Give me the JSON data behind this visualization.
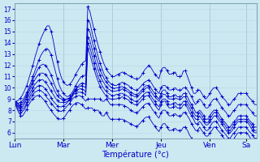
{
  "xlabel": "Température (°c)",
  "ylim": [
    5.5,
    17.5
  ],
  "yticks": [
    6,
    7,
    8,
    9,
    10,
    11,
    12,
    13,
    14,
    15,
    16,
    17
  ],
  "day_labels": [
    "Lun",
    "Mar",
    "Mer",
    "Jeu",
    "Ven",
    "Sa"
  ],
  "background_color": "#cce8f0",
  "grid_color_minor": "#b8d8e8",
  "grid_color_major": "#9fbfcf",
  "line_color": "#0000cc",
  "marker": "+",
  "n_days": 6,
  "hours_per_day": 24,
  "series": [
    [
      8.8,
      8.8,
      8.9,
      9.1,
      9.4,
      9.8,
      10.2,
      10.8,
      11.4,
      12.0,
      12.7,
      13.3,
      13.9,
      14.4,
      14.8,
      15.2,
      15.5,
      15.5,
      15.0,
      14.2,
      13.2,
      12.3,
      11.5,
      10.9,
      10.5,
      10.3,
      10.2,
      10.3,
      10.5,
      10.8,
      11.2,
      11.5,
      11.8,
      12.1,
      12.3,
      12.4,
      17.2,
      16.8,
      16.0,
      15.2,
      14.5,
      13.8,
      13.2,
      12.6,
      12.1,
      11.7,
      11.4,
      11.2,
      11.0,
      11.0,
      11.1,
      11.2,
      11.3,
      11.4,
      11.3,
      11.2,
      11.1,
      11.0,
      10.9,
      10.8,
      10.8,
      10.8,
      11.0,
      11.3,
      11.6,
      11.8,
      12.0,
      11.8,
      11.5,
      11.2,
      11.0,
      10.8,
      11.5,
      11.8,
      11.8,
      11.5,
      11.2,
      11.2,
      11.3,
      11.4,
      11.0,
      11.0,
      11.0,
      11.5,
      11.5,
      11.0,
      10.5,
      10.0,
      9.5,
      9.5,
      9.8,
      9.8,
      9.5,
      9.2,
      9.0,
      9.2,
      9.5,
      9.8,
      10.0,
      10.0,
      9.8,
      9.5,
      9.2,
      9.0,
      8.8,
      8.5,
      8.5,
      8.8,
      9.0,
      9.2,
      9.5,
      9.5,
      9.5,
      9.5,
      9.5,
      9.2,
      9.0,
      8.8,
      8.5,
      8.5
    ],
    [
      8.8,
      8.7,
      8.6,
      8.7,
      8.9,
      9.2,
      9.6,
      10.0,
      10.5,
      11.0,
      11.5,
      12.0,
      12.5,
      12.9,
      13.2,
      13.4,
      13.5,
      13.3,
      12.9,
      12.2,
      11.5,
      10.8,
      10.2,
      9.8,
      9.5,
      9.3,
      9.2,
      9.3,
      9.5,
      9.8,
      10.2,
      10.5,
      10.8,
      11.0,
      11.1,
      11.1,
      16.0,
      15.8,
      15.0,
      14.2,
      13.5,
      12.8,
      12.2,
      11.7,
      11.2,
      10.9,
      10.6,
      10.4,
      10.3,
      10.2,
      10.2,
      10.3,
      10.4,
      10.5,
      10.4,
      10.3,
      10.2,
      10.0,
      9.9,
      9.8,
      9.8,
      9.9,
      10.1,
      10.3,
      10.5,
      10.6,
      10.7,
      10.5,
      10.2,
      9.9,
      9.7,
      9.5,
      10.0,
      10.2,
      10.2,
      10.0,
      9.8,
      9.8,
      9.9,
      10.0,
      9.8,
      9.8,
      9.8,
      10.0,
      10.0,
      9.8,
      9.5,
      9.2,
      8.8,
      8.5,
      8.8,
      9.0,
      8.8,
      8.5,
      8.2,
      8.2,
      8.5,
      8.8,
      9.0,
      9.0,
      8.8,
      8.5,
      8.2,
      8.0,
      7.8,
      7.5,
      7.5,
      7.8,
      8.0,
      8.2,
      8.5,
      8.5,
      8.5,
      8.5,
      8.5,
      8.2,
      8.0,
      7.8,
      7.5,
      7.5
    ],
    [
      8.8,
      8.7,
      8.5,
      8.5,
      8.7,
      9.0,
      9.4,
      9.8,
      10.2,
      10.7,
      11.1,
      11.5,
      11.8,
      12.0,
      12.1,
      12.0,
      11.8,
      11.5,
      11.1,
      10.6,
      10.1,
      9.7,
      9.4,
      9.2,
      9.0,
      9.0,
      9.0,
      9.1,
      9.3,
      9.6,
      9.9,
      10.1,
      10.3,
      10.4,
      10.4,
      10.3,
      15.2,
      15.0,
      14.2,
      13.5,
      12.8,
      12.2,
      11.6,
      11.2,
      10.8,
      10.5,
      10.3,
      10.1,
      10.0,
      9.9,
      10.0,
      10.0,
      10.1,
      10.1,
      10.0,
      9.9,
      9.8,
      9.6,
      9.5,
      9.4,
      9.4,
      9.5,
      9.7,
      9.9,
      10.1,
      10.2,
      10.2,
      10.0,
      9.7,
      9.5,
      9.2,
      9.0,
      9.5,
      9.8,
      9.8,
      9.5,
      9.2,
      9.2,
      9.3,
      9.4,
      9.2,
      9.2,
      9.2,
      9.5,
      9.5,
      9.2,
      8.8,
      8.5,
      8.2,
      7.8,
      7.8,
      8.0,
      7.8,
      7.5,
      7.2,
      7.2,
      7.5,
      7.8,
      8.0,
      8.0,
      7.8,
      7.5,
      7.2,
      7.0,
      6.8,
      6.5,
      6.5,
      6.8,
      7.0,
      7.2,
      7.5,
      7.5,
      7.5,
      7.5,
      7.5,
      7.2,
      7.0,
      6.8,
      6.5,
      6.5
    ],
    [
      8.8,
      8.6,
      8.4,
      8.4,
      8.5,
      8.8,
      9.2,
      9.6,
      10.0,
      10.4,
      10.7,
      11.0,
      11.2,
      11.3,
      11.3,
      11.2,
      11.0,
      10.7,
      10.4,
      10.0,
      9.6,
      9.3,
      9.1,
      9.0,
      8.9,
      8.9,
      9.0,
      9.1,
      9.3,
      9.6,
      9.8,
      10.0,
      10.1,
      10.2,
      10.1,
      10.0,
      14.5,
      14.2,
      13.5,
      12.8,
      12.2,
      11.6,
      11.1,
      10.7,
      10.4,
      10.1,
      9.9,
      9.8,
      9.7,
      9.7,
      9.7,
      9.8,
      9.8,
      9.9,
      9.8,
      9.7,
      9.6,
      9.4,
      9.3,
      9.2,
      9.2,
      9.3,
      9.5,
      9.7,
      9.9,
      10.0,
      10.0,
      9.7,
      9.4,
      9.2,
      9.0,
      8.8,
      9.2,
      9.4,
      9.4,
      9.2,
      9.0,
      9.0,
      9.0,
      9.1,
      9.0,
      9.0,
      9.0,
      9.2,
      9.2,
      8.8,
      8.5,
      8.2,
      7.8,
      7.5,
      7.5,
      7.8,
      7.5,
      7.2,
      6.9,
      6.9,
      7.2,
      7.5,
      7.8,
      7.8,
      7.5,
      7.2,
      7.0,
      6.8,
      6.5,
      6.2,
      6.2,
      6.5,
      6.8,
      7.0,
      7.2,
      7.2,
      7.2,
      7.2,
      7.2,
      7.0,
      6.8,
      6.5,
      6.2,
      6.2
    ],
    [
      8.8,
      8.5,
      8.3,
      8.2,
      8.3,
      8.6,
      9.0,
      9.3,
      9.7,
      10.0,
      10.3,
      10.5,
      10.7,
      10.7,
      10.7,
      10.5,
      10.3,
      10.0,
      9.7,
      9.4,
      9.1,
      8.9,
      8.7,
      8.7,
      8.7,
      8.7,
      8.8,
      9.0,
      9.2,
      9.5,
      9.7,
      9.8,
      9.9,
      9.9,
      9.8,
      9.6,
      14.0,
      13.6,
      12.9,
      12.2,
      11.6,
      11.0,
      10.6,
      10.2,
      9.9,
      9.7,
      9.5,
      9.4,
      9.3,
      9.3,
      9.4,
      9.4,
      9.5,
      9.5,
      9.4,
      9.3,
      9.2,
      9.0,
      8.9,
      8.8,
      8.8,
      8.9,
      9.1,
      9.3,
      9.5,
      9.6,
      9.6,
      9.3,
      9.0,
      8.8,
      8.5,
      8.3,
      8.8,
      9.0,
      9.0,
      8.8,
      8.5,
      8.5,
      8.6,
      8.7,
      8.5,
      8.5,
      8.5,
      8.8,
      8.8,
      8.5,
      8.2,
      7.8,
      7.5,
      7.2,
      7.2,
      7.5,
      7.2,
      7.0,
      6.7,
      6.7,
      7.0,
      7.2,
      7.5,
      7.5,
      7.2,
      7.0,
      6.8,
      6.5,
      6.2,
      6.0,
      6.0,
      6.2,
      6.5,
      6.8,
      7.0,
      7.0,
      7.0,
      7.0,
      7.0,
      6.8,
      6.5,
      6.2,
      6.0,
      6.0
    ],
    [
      8.8,
      8.4,
      8.2,
      8.0,
      8.1,
      8.3,
      8.7,
      9.0,
      9.4,
      9.7,
      9.9,
      10.1,
      10.2,
      10.2,
      10.1,
      9.9,
      9.7,
      9.4,
      9.1,
      8.8,
      8.6,
      8.4,
      8.3,
      8.3,
      8.4,
      8.5,
      8.7,
      8.9,
      9.1,
      9.4,
      9.5,
      9.6,
      9.6,
      9.6,
      9.5,
      9.3,
      13.5,
      13.0,
      12.3,
      11.7,
      11.1,
      10.6,
      10.1,
      9.8,
      9.5,
      9.3,
      9.1,
      9.0,
      9.0,
      9.0,
      9.0,
      9.1,
      9.1,
      9.2,
      9.1,
      9.0,
      8.9,
      8.7,
      8.6,
      8.5,
      8.5,
      8.6,
      8.8,
      9.0,
      9.2,
      9.3,
      9.3,
      9.0,
      8.7,
      8.5,
      8.2,
      8.0,
      8.5,
      8.8,
      8.8,
      8.5,
      8.2,
      8.2,
      8.3,
      8.4,
      8.2,
      8.2,
      8.2,
      8.5,
      8.5,
      8.2,
      7.8,
      7.5,
      7.2,
      6.8,
      6.8,
      7.0,
      6.8,
      6.5,
      6.2,
      6.2,
      6.5,
      6.8,
      7.0,
      7.0,
      6.8,
      6.5,
      6.2,
      6.0,
      5.8,
      5.5,
      5.5,
      5.8,
      6.0,
      6.2,
      6.5,
      6.5,
      6.5,
      6.5,
      6.5,
      6.2,
      6.0,
      5.8,
      5.5,
      5.5
    ],
    [
      8.8,
      8.3,
      8.0,
      7.8,
      7.9,
      8.1,
      8.5,
      8.8,
      9.1,
      9.4,
      9.6,
      9.7,
      9.8,
      9.7,
      9.6,
      9.4,
      9.1,
      8.9,
      8.6,
      8.4,
      8.2,
      8.0,
      7.9,
      7.9,
      8.0,
      8.2,
      8.4,
      8.6,
      8.9,
      9.1,
      9.2,
      9.3,
      9.3,
      9.2,
      9.0,
      8.8,
      9.0,
      9.0,
      9.0,
      9.0,
      9.0,
      9.0,
      9.0,
      8.8,
      8.8,
      9.0,
      8.8,
      8.5,
      8.5,
      8.5,
      8.5,
      8.5,
      8.5,
      8.5,
      8.4,
      8.3,
      8.2,
      8.0,
      7.9,
      7.8,
      7.8,
      7.9,
      8.1,
      8.3,
      8.5,
      8.6,
      8.6,
      8.3,
      8.0,
      7.8,
      7.5,
      7.3,
      7.8,
      8.0,
      8.0,
      7.8,
      7.5,
      7.5,
      7.6,
      7.7,
      7.5,
      7.5,
      7.5,
      7.8,
      7.8,
      7.5,
      7.2,
      6.8,
      6.5,
      6.2,
      6.2,
      6.5,
      6.2,
      6.0,
      5.7,
      5.7,
      6.0,
      6.2,
      6.5,
      6.5,
      6.2,
      6.0,
      5.8,
      5.5,
      5.2,
      5.0,
      5.0,
      5.2,
      5.5,
      5.8,
      6.0,
      6.0,
      6.0,
      6.0,
      6.0,
      5.8,
      5.5,
      5.2,
      5.0,
      5.0
    ],
    [
      8.8,
      8.2,
      7.8,
      7.5,
      7.5,
      7.8,
      8.1,
      8.5,
      8.8,
      9.0,
      9.2,
      9.3,
      9.3,
      9.2,
      9.0,
      8.8,
      8.5,
      8.2,
      8.0,
      7.7,
      7.5,
      7.3,
      7.2,
      7.2,
      7.3,
      7.5,
      7.8,
      8.0,
      8.3,
      8.5,
      8.6,
      8.7,
      8.6,
      8.5,
      8.3,
      8.1,
      8.2,
      8.2,
      8.2,
      8.0,
      8.0,
      8.0,
      7.8,
      7.5,
      7.5,
      7.8,
      7.5,
      7.2,
      7.2,
      7.2,
      7.2,
      7.2,
      7.2,
      7.2,
      7.1,
      7.0,
      6.9,
      6.8,
      6.7,
      6.6,
      6.6,
      6.7,
      6.9,
      7.1,
      7.3,
      7.4,
      7.4,
      7.1,
      6.8,
      6.6,
      6.3,
      6.1,
      6.5,
      6.8,
      6.8,
      6.5,
      6.2,
      6.2,
      6.3,
      6.4,
      6.2,
      6.2,
      6.2,
      6.5,
      6.5,
      6.2,
      5.8,
      5.5,
      5.2,
      4.8,
      4.8,
      5.0,
      4.8,
      4.5,
      4.2,
      4.2,
      4.5,
      4.8,
      5.0,
      5.0,
      4.8,
      4.5,
      4.2,
      4.0,
      3.8,
      3.5,
      3.5,
      3.8,
      4.0,
      4.2,
      4.5,
      4.5,
      4.5,
      4.5,
      4.5,
      4.2,
      4.0,
      3.8,
      3.5,
      3.5
    ]
  ]
}
